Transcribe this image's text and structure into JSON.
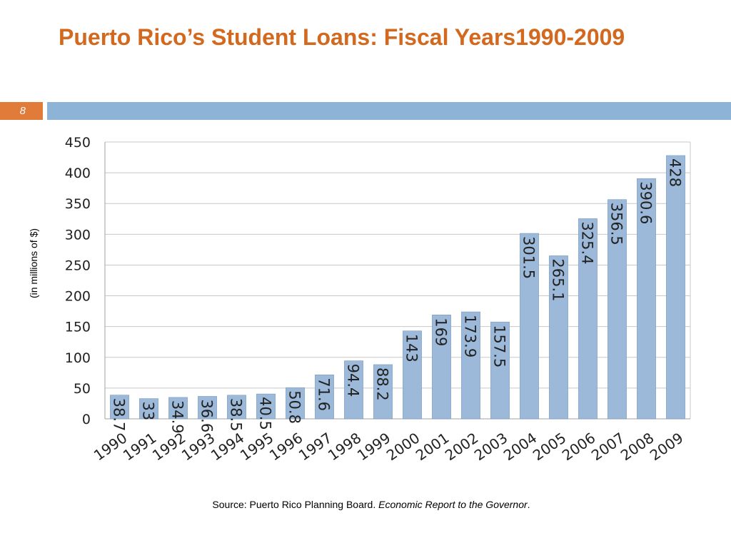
{
  "slide": {
    "title": "Puerto Rico’s Student Loans: Fiscal Years1990-2009",
    "slide_number": "8",
    "accent_color": "#D2691E",
    "band_color": "#8DB3D6",
    "number_box_color": "#E07B39"
  },
  "source": {
    "prefix": "Source: Puerto Rico Planning Board. ",
    "report": "Economic Report to the Governor",
    "suffix": "."
  },
  "chart_data": {
    "type": "bar",
    "ylabel": "(in millions of $)",
    "xlabel": "",
    "categories": [
      "1990",
      "1991",
      "1992",
      "1993",
      "1994",
      "1995",
      "1996",
      "1997",
      "1998",
      "1999",
      "2000",
      "2001",
      "2002",
      "2003",
      "2004",
      "2005",
      "2006",
      "2007",
      "2008",
      "2009"
    ],
    "values": [
      38.7,
      33,
      34.9,
      36.6,
      38.5,
      40.5,
      50.8,
      71.6,
      94.4,
      88.2,
      143,
      169,
      173.9,
      157.5,
      301.5,
      265.1,
      325.4,
      356.5,
      390.6,
      428
    ],
    "ylim": [
      0,
      450
    ],
    "yticks": [
      0,
      50,
      100,
      150,
      200,
      250,
      300,
      350,
      400,
      450
    ],
    "grid": true,
    "bar_color": "#9CB9D9",
    "legend": "none"
  }
}
